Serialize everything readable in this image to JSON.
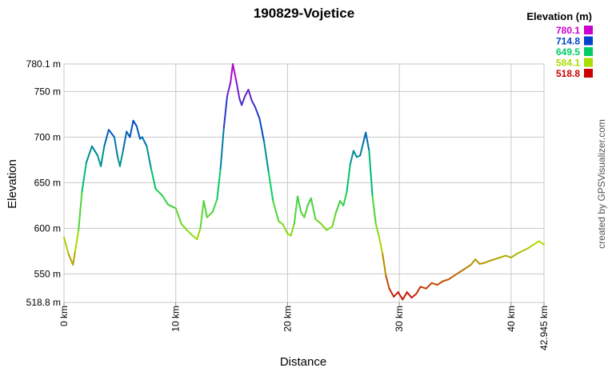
{
  "chart_data": {
    "type": "line",
    "title": "190829-Vojetice",
    "xlabel": "Distance",
    "ylabel": "Elevation",
    "xlim": [
      0,
      42.945
    ],
    "ylim": [
      518.8,
      780.1
    ],
    "x_ticks": [
      {
        "value": 0,
        "label": "0 km"
      },
      {
        "value": 10,
        "label": "10 km"
      },
      {
        "value": 20,
        "label": "20 km"
      },
      {
        "value": 30,
        "label": "30 km"
      },
      {
        "value": 40,
        "label": "40 km"
      },
      {
        "value": 42.945,
        "label": "42.945 km"
      }
    ],
    "y_ticks": [
      {
        "value": 518.8,
        "label": "518.8 m"
      },
      {
        "value": 550,
        "label": "550 m"
      },
      {
        "value": 600,
        "label": "600 m"
      },
      {
        "value": 650,
        "label": "650 m"
      },
      {
        "value": 700,
        "label": "700 m"
      },
      {
        "value": 750,
        "label": "750 m"
      },
      {
        "value": 780.1,
        "label": "780.1 m"
      }
    ],
    "grid": true,
    "legend": {
      "title": "Elevation (m)",
      "placement": "top-right",
      "entries": [
        {
          "label": "780.1",
          "color": "#cc00cc"
        },
        {
          "label": "714.8",
          "color": "#0044cc"
        },
        {
          "label": "649.5",
          "color": "#00cc66"
        },
        {
          "label": "584.1",
          "color": "#aadd00"
        },
        {
          "label": "518.8",
          "color": "#cc0000"
        }
      ]
    },
    "series": [
      {
        "color_scale": [
          "#cc0000",
          "#aadd00",
          "#00cc66",
          "#0044cc",
          "#cc00cc"
        ],
        "points": [
          [
            0,
            590
          ],
          [
            0.4,
            572
          ],
          [
            0.8,
            560
          ],
          [
            1.0,
            575
          ],
          [
            1.3,
            598
          ],
          [
            1.6,
            640
          ],
          [
            2.0,
            672
          ],
          [
            2.5,
            690
          ],
          [
            3.0,
            680
          ],
          [
            3.3,
            668
          ],
          [
            3.6,
            690
          ],
          [
            4.0,
            708
          ],
          [
            4.5,
            700
          ],
          [
            4.8,
            678
          ],
          [
            5.0,
            668
          ],
          [
            5.3,
            686
          ],
          [
            5.6,
            706
          ],
          [
            5.9,
            700
          ],
          [
            6.2,
            718
          ],
          [
            6.5,
            712
          ],
          [
            6.8,
            698
          ],
          [
            7.0,
            700
          ],
          [
            7.4,
            690
          ],
          [
            7.8,
            665
          ],
          [
            8.2,
            643
          ],
          [
            8.8,
            636
          ],
          [
            9.3,
            626
          ],
          [
            10.0,
            622
          ],
          [
            10.5,
            605
          ],
          [
            11.0,
            598
          ],
          [
            11.5,
            592
          ],
          [
            11.9,
            588
          ],
          [
            12.2,
            600
          ],
          [
            12.5,
            630
          ],
          [
            12.8,
            612
          ],
          [
            13.3,
            618
          ],
          [
            13.7,
            632
          ],
          [
            14.0,
            665
          ],
          [
            14.3,
            710
          ],
          [
            14.6,
            745
          ],
          [
            14.9,
            760
          ],
          [
            15.1,
            780.1
          ],
          [
            15.4,
            762
          ],
          [
            15.7,
            742
          ],
          [
            15.9,
            735
          ],
          [
            16.2,
            745
          ],
          [
            16.5,
            752
          ],
          [
            16.8,
            740
          ],
          [
            17.1,
            733
          ],
          [
            17.5,
            720
          ],
          [
            17.9,
            695
          ],
          [
            18.3,
            662
          ],
          [
            18.7,
            630
          ],
          [
            19.2,
            608
          ],
          [
            19.6,
            604
          ],
          [
            20.0,
            594
          ],
          [
            20.3,
            592
          ],
          [
            20.6,
            605
          ],
          [
            20.9,
            635
          ],
          [
            21.2,
            618
          ],
          [
            21.5,
            612
          ],
          [
            21.8,
            625
          ],
          [
            22.1,
            633
          ],
          [
            22.5,
            610
          ],
          [
            23.0,
            605
          ],
          [
            23.5,
            598
          ],
          [
            24.0,
            602
          ],
          [
            24.3,
            616
          ],
          [
            24.7,
            630
          ],
          [
            25.0,
            625
          ],
          [
            25.3,
            640
          ],
          [
            25.6,
            670
          ],
          [
            25.9,
            685
          ],
          [
            26.2,
            678
          ],
          [
            26.5,
            680
          ],
          [
            26.8,
            695
          ],
          [
            27.0,
            705
          ],
          [
            27.3,
            685
          ],
          [
            27.6,
            635
          ],
          [
            27.9,
            605
          ],
          [
            28.2,
            590
          ],
          [
            28.5,
            572
          ],
          [
            28.8,
            548
          ],
          [
            29.1,
            534
          ],
          [
            29.5,
            525
          ],
          [
            29.9,
            530
          ],
          [
            30.3,
            522
          ],
          [
            30.7,
            530
          ],
          [
            31.1,
            524
          ],
          [
            31.5,
            528
          ],
          [
            31.9,
            536
          ],
          [
            32.4,
            534
          ],
          [
            32.9,
            540
          ],
          [
            33.4,
            538
          ],
          [
            33.9,
            542
          ],
          [
            34.4,
            544
          ],
          [
            34.9,
            548
          ],
          [
            35.4,
            552
          ],
          [
            35.9,
            556
          ],
          [
            36.4,
            560
          ],
          [
            36.8,
            566
          ],
          [
            37.2,
            561
          ],
          [
            37.6,
            562
          ],
          [
            38.0,
            564
          ],
          [
            38.5,
            566
          ],
          [
            39.0,
            568
          ],
          [
            39.5,
            570
          ],
          [
            40.0,
            568
          ],
          [
            40.5,
            572
          ],
          [
            41.0,
            575
          ],
          [
            41.5,
            578
          ],
          [
            42.0,
            582
          ],
          [
            42.5,
            586
          ],
          [
            42.945,
            582
          ]
        ]
      }
    ]
  },
  "credit": "created by GPSVisualizer.com"
}
